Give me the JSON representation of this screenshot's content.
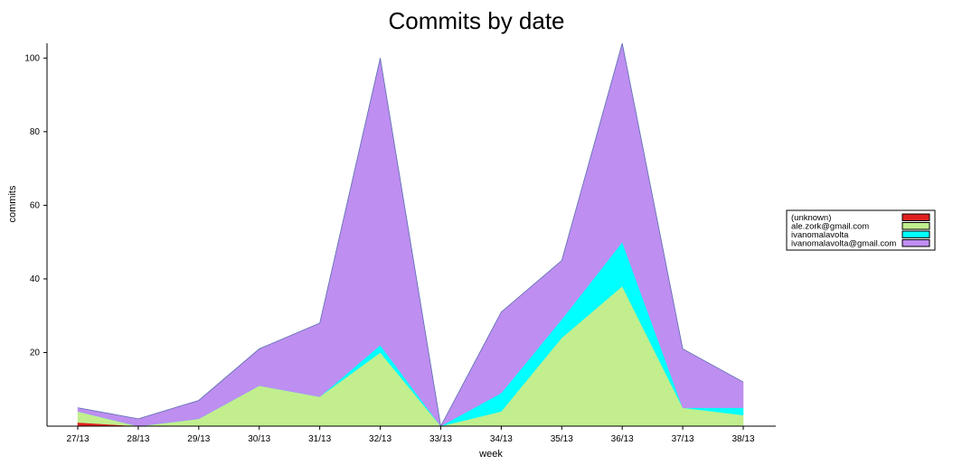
{
  "chart_data": {
    "type": "area",
    "stacked": true,
    "title": "Commits by date",
    "xlabel": "week",
    "ylabel": "commits",
    "categories": [
      "27/13",
      "28/13",
      "29/13",
      "30/13",
      "31/13",
      "32/13",
      "33/13",
      "34/13",
      "35/13",
      "36/13",
      "37/13",
      "38/13"
    ],
    "yticks": [
      20,
      40,
      60,
      80,
      100
    ],
    "ylim": [
      0,
      104
    ],
    "grid": false,
    "legend_position": "right",
    "series": [
      {
        "name": "(unknown)",
        "color": "#e02020",
        "values": [
          1,
          0,
          0,
          0,
          0,
          0,
          0,
          0,
          0,
          0,
          0,
          0
        ]
      },
      {
        "name": "ale.zork@gmail.com",
        "color": "#c2ee8e",
        "values": [
          3,
          0,
          2,
          11,
          8,
          20,
          0,
          4,
          24,
          38,
          5,
          3
        ]
      },
      {
        "name": "ivanomalavolta",
        "color": "#00ffff",
        "values": [
          0,
          0,
          0,
          0,
          0,
          2,
          0,
          5,
          5,
          12,
          0,
          2
        ]
      },
      {
        "name": "ivanomalavolta@gmail.com",
        "color": "#be8ef0",
        "values": [
          1,
          2,
          5,
          10,
          20,
          78,
          0,
          22,
          16,
          54,
          16,
          7
        ]
      }
    ]
  }
}
